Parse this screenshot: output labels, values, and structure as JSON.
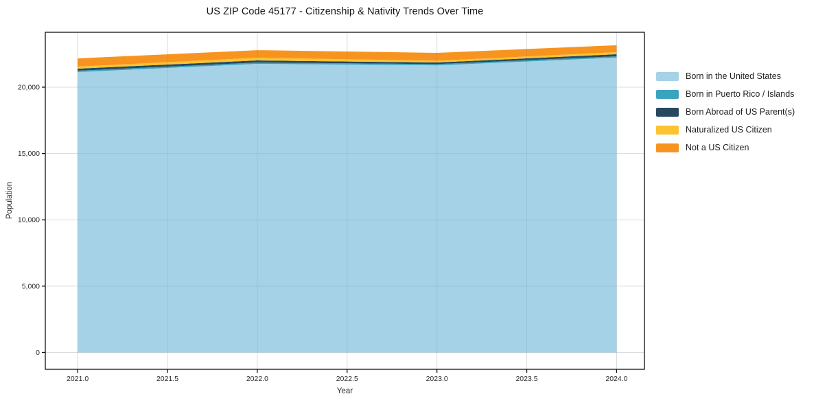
{
  "chart_data": {
    "type": "area",
    "stacked": true,
    "title": "US ZIP Code 45177 - Citizenship & Nativity Trends Over Time",
    "xlabel": "Year",
    "ylabel": "Population",
    "x": [
      2021,
      2022,
      2023,
      2024
    ],
    "series": [
      {
        "id": "us_born",
        "name": "Born in the United States",
        "color": "#a5d2e6",
        "values": [
          21140,
          21760,
          21640,
          22230
        ]
      },
      {
        "id": "puerto_rico_islands",
        "name": "Born in Puerto Rico / Islands",
        "color": "#3aa3bd",
        "values": [
          100,
          100,
          100,
          100
        ]
      },
      {
        "id": "born_abroad",
        "name": "Born Abroad of US Parent(s)",
        "color": "#27485d",
        "values": [
          155,
          155,
          120,
          155
        ]
      },
      {
        "id": "naturalized",
        "name": "Naturalized US Citizen",
        "color": "#fdc22f",
        "values": [
          155,
          205,
          130,
          155
        ]
      },
      {
        "id": "not_citizen",
        "name": "Not a US Citizen",
        "color": "#f79420",
        "values": [
          620,
          570,
          600,
          520
        ]
      }
    ],
    "totals": [
      22170,
      22790,
      22590,
      23160
    ],
    "axes": {
      "xlim": [
        2020.82,
        2024.155
      ],
      "ylim": [
        -1270,
        24140
      ],
      "x_ticks": [
        {
          "value": 2021.0,
          "label": "2021.0"
        },
        {
          "value": 2021.5,
          "label": "2021.5"
        },
        {
          "value": 2022.0,
          "label": "2022.0"
        },
        {
          "value": 2022.5,
          "label": "2022.5"
        },
        {
          "value": 2023.0,
          "label": "2023.0"
        },
        {
          "value": 2023.5,
          "label": "2023.5"
        },
        {
          "value": 2024.0,
          "label": "2024.0"
        }
      ],
      "y_ticks": [
        {
          "value": 0,
          "label": "0"
        },
        {
          "value": 5000,
          "label": "5,000"
        },
        {
          "value": 10000,
          "label": "10,000"
        },
        {
          "value": 15000,
          "label": "15,000"
        },
        {
          "value": 20000,
          "label": "20,000"
        }
      ],
      "grid": true,
      "legend_position": "right"
    },
    "colors": {
      "grid": "#ececec",
      "frame": "#111111",
      "tick_label": "#2a2a2a"
    }
  }
}
